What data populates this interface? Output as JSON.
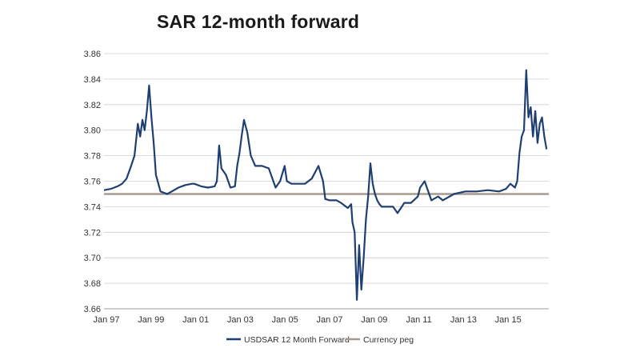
{
  "chart_data": {
    "type": "line",
    "title": "SAR 12-month forward",
    "xlabel": "",
    "ylabel": "",
    "ylim": [
      3.66,
      3.86
    ],
    "yticks": [
      "3.86",
      "3.84",
      "3.82",
      "3.80",
      "3.78",
      "3.76",
      "3.74",
      "3.72",
      "3.70",
      "3.68",
      "3.66"
    ],
    "xticks": [
      "Jan 97",
      "Jan 99",
      "Jan 01",
      "Jan 03",
      "Jan 05",
      "Jan 07",
      "Jan 09",
      "Jan 11",
      "Jan 13",
      "Jan 15"
    ],
    "xlim": [
      1997.0,
      2016.7
    ],
    "grid": "horizontal",
    "legend_position": "bottom",
    "series": [
      {
        "name": "USDSAR 12 Month Forward",
        "color": "#1f3f73",
        "x": [
          1997.0,
          1997.3,
          1997.6,
          1997.8,
          1998.0,
          1998.2,
          1998.35,
          1998.5,
          1998.6,
          1998.7,
          1998.8,
          1998.9,
          1999.0,
          1999.1,
          1999.2,
          1999.3,
          1999.5,
          1999.8,
          2000.0,
          2000.3,
          2000.6,
          2000.9,
          2001.0,
          2001.3,
          2001.6,
          2001.9,
          2002.0,
          2002.1,
          2002.2,
          2002.4,
          2002.6,
          2002.8,
          2002.9,
          2003.0,
          2003.1,
          2003.2,
          2003.35,
          2003.5,
          2003.7,
          2004.0,
          2004.3,
          2004.6,
          2004.8,
          2005.0,
          2005.1,
          2005.3,
          2005.6,
          2005.9,
          2006.2,
          2006.5,
          2006.7,
          2006.8,
          2007.0,
          2007.3,
          2007.5,
          2007.8,
          2007.95,
          2008.0,
          2008.1,
          2008.2,
          2008.3,
          2008.4,
          2008.5,
          2008.6,
          2008.7,
          2008.8,
          2008.9,
          2009.0,
          2009.1,
          2009.2,
          2009.3,
          2009.5,
          2009.8,
          2010.0,
          2010.3,
          2010.6,
          2010.9,
          2011.0,
          2011.2,
          2011.5,
          2011.8,
          2012.0,
          2012.5,
          2013.0,
          2013.5,
          2014.0,
          2014.5,
          2014.8,
          2015.0,
          2015.2,
          2015.3,
          2015.4,
          2015.5,
          2015.6,
          2015.7,
          2015.8,
          2015.9,
          2016.0,
          2016.1,
          2016.2,
          2016.3,
          2016.4,
          2016.5,
          2016.6
        ],
        "values": [
          3.753,
          3.754,
          3.756,
          3.758,
          3.762,
          3.772,
          3.78,
          3.805,
          3.795,
          3.808,
          3.8,
          3.815,
          3.835,
          3.81,
          3.79,
          3.765,
          3.752,
          3.75,
          3.752,
          3.755,
          3.757,
          3.758,
          3.758,
          3.756,
          3.755,
          3.756,
          3.76,
          3.788,
          3.77,
          3.765,
          3.755,
          3.756,
          3.772,
          3.782,
          3.796,
          3.808,
          3.798,
          3.78,
          3.772,
          3.772,
          3.77,
          3.755,
          3.76,
          3.772,
          3.76,
          3.758,
          3.758,
          3.758,
          3.762,
          3.772,
          3.76,
          3.746,
          3.745,
          3.745,
          3.743,
          3.739,
          3.742,
          3.728,
          3.72,
          3.667,
          3.71,
          3.675,
          3.7,
          3.73,
          3.748,
          3.774,
          3.758,
          3.75,
          3.745,
          3.742,
          3.74,
          3.74,
          3.74,
          3.735,
          3.743,
          3.743,
          3.748,
          3.755,
          3.76,
          3.745,
          3.748,
          3.745,
          3.75,
          3.752,
          3.752,
          3.753,
          3.752,
          3.754,
          3.758,
          3.755,
          3.76,
          3.782,
          3.795,
          3.8,
          3.847,
          3.81,
          3.818,
          3.795,
          3.815,
          3.79,
          3.805,
          3.81,
          3.795,
          3.785
        ]
      },
      {
        "name": "Currency peg",
        "color": "#a89a8e",
        "x": [
          1997.0,
          2016.7
        ],
        "values": [
          3.75,
          3.75
        ]
      }
    ]
  }
}
